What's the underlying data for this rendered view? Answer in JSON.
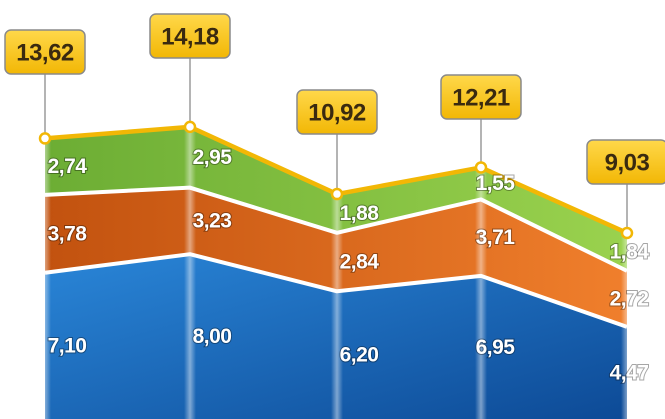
{
  "chart_data": {
    "type": "area",
    "stacked": true,
    "categories": [
      "",
      "",
      "",
      "",
      ""
    ],
    "series": [
      {
        "values": [
          7.1,
          8.0,
          6.2,
          6.95,
          4.47
        ],
        "color": "#1a6fc4"
      },
      {
        "values": [
          3.78,
          3.23,
          2.84,
          3.71,
          2.72
        ],
        "color": "#d9641c"
      },
      {
        "values": [
          2.74,
          2.95,
          1.88,
          1.55,
          1.84
        ],
        "color": "#7dbb3c"
      }
    ],
    "totals": [
      13.62,
      14.18,
      10.92,
      12.21,
      9.03
    ],
    "value_labels": {
      "series": [
        [
          "7,10",
          "8,00",
          "6,20",
          "6,95",
          "4,47"
        ],
        [
          "3,78",
          "3,23",
          "2,84",
          "3,71",
          "2,72"
        ],
        [
          "2,74",
          "2,95",
          "1,88",
          "1,55",
          "1,84"
        ]
      ],
      "totals": [
        "13,62",
        "14,18",
        "10,92",
        "12,21",
        "9,03"
      ]
    },
    "colors": {
      "total_line": "#f2b705",
      "callout_fill": "#f5c518",
      "callout_border": "#8a8a8a"
    }
  }
}
